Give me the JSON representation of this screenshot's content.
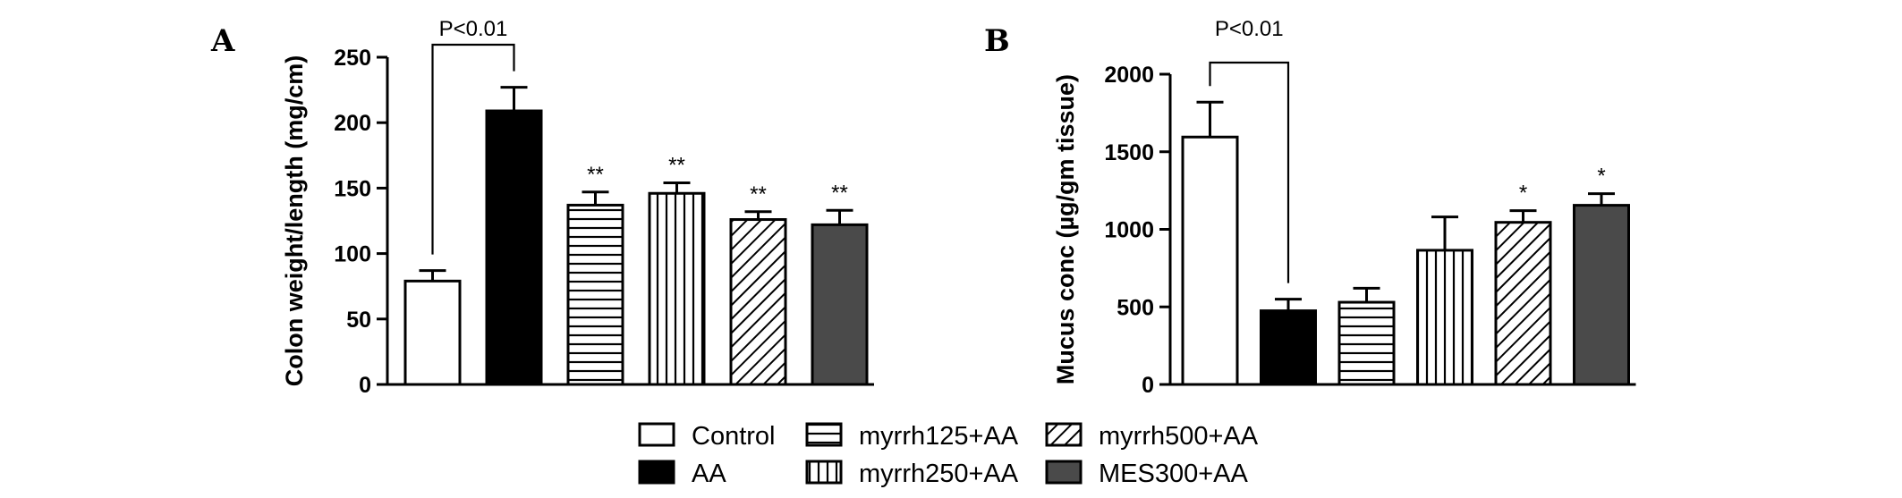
{
  "legend": [
    {
      "label": "Control",
      "pattern": "solid-white"
    },
    {
      "label": "AA",
      "pattern": "solid-black"
    },
    {
      "label": "myrrh125+AA",
      "pattern": "horizontal-lines"
    },
    {
      "label": "myrrh250+AA",
      "pattern": "vertical-lines"
    },
    {
      "label": "myrrh500+AA",
      "pattern": "diagonal-lines"
    },
    {
      "label": "MES300+AA",
      "pattern": "solid-darkgray"
    }
  ],
  "colors": {
    "solid-white": "#ffffff",
    "solid-black": "#000000",
    "solid-darkgray": "#4a4a4a",
    "line": "#000000"
  },
  "chart_data": [
    {
      "type": "bar",
      "panel": "A",
      "ylabel": "Colon weight/length (mg/cm)",
      "ylim": [
        0,
        250
      ],
      "yticks": [
        0,
        50,
        100,
        150,
        200,
        250
      ],
      "categories": [
        "Control",
        "AA",
        "myrrh125+AA",
        "myrrh250+AA",
        "myrrh500+AA",
        "MES300+AA"
      ],
      "values": [
        79,
        209,
        137,
        146,
        126,
        122
      ],
      "errors": [
        8,
        18,
        10,
        8,
        6,
        11
      ],
      "significance": [
        "",
        "",
        "**",
        "**",
        "**",
        "**"
      ],
      "comparison": {
        "from": 0,
        "to": 1,
        "label": "P<0.01"
      }
    },
    {
      "type": "bar",
      "panel": "B",
      "ylabel": "Mucus conc  (µg/gm tissue)",
      "ylim": [
        0,
        2000
      ],
      "yticks": [
        0,
        500,
        1000,
        1500,
        2000
      ],
      "categories": [
        "Control",
        "AA",
        "myrrh125+AA",
        "myrrh250+AA",
        "myrrh500+AA",
        "MES300+AA"
      ],
      "values": [
        1595,
        475,
        530,
        865,
        1045,
        1155
      ],
      "errors": [
        225,
        75,
        90,
        215,
        75,
        75
      ],
      "significance": [
        "",
        "",
        "",
        "",
        "*",
        "*"
      ],
      "comparison": {
        "from": 0,
        "to": 1,
        "label": "P<0.01"
      }
    }
  ]
}
